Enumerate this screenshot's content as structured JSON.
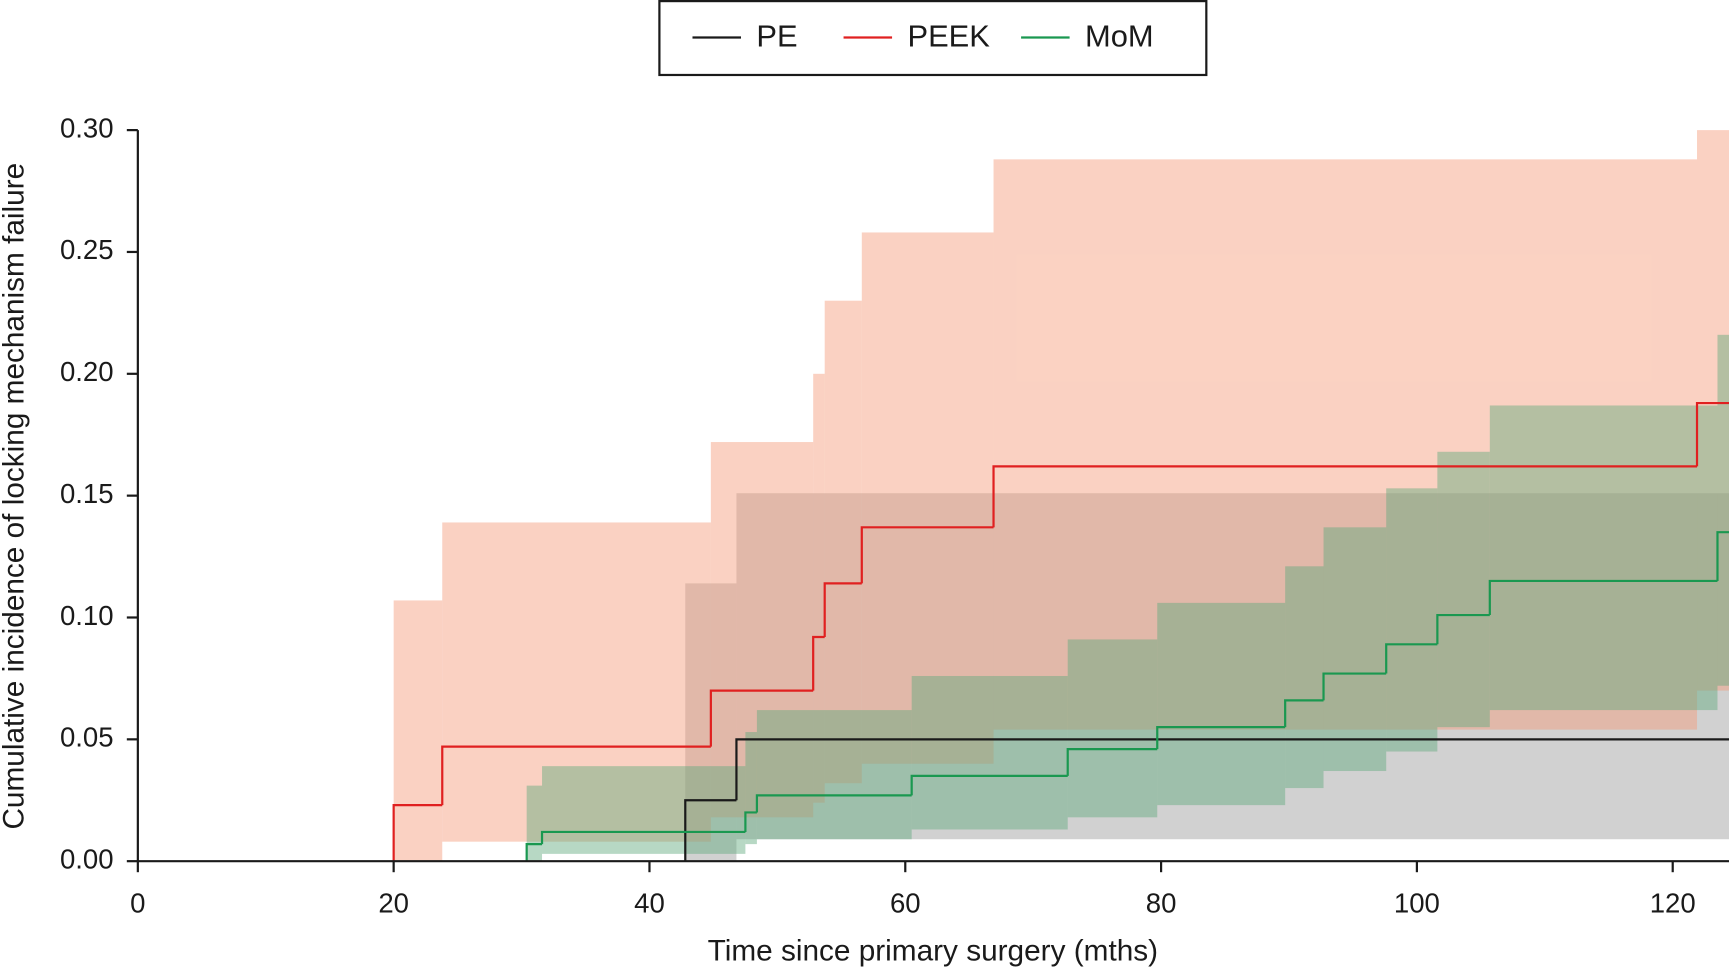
{
  "chart_data": {
    "type": "step",
    "xlabel": "Time since primary surgery (mths)",
    "ylabel": "Cumulative incidence of locking mechanism failure",
    "xlim": [
      0,
      124.4
    ],
    "ylim": [
      0,
      0.3
    ],
    "xticks": [
      0,
      20,
      40,
      60,
      80,
      100,
      120
    ],
    "yticks": [
      {
        "value": 0,
        "label": "0.00"
      },
      {
        "value": 0.05,
        "label": "0.05"
      },
      {
        "value": 0.1,
        "label": "0.10"
      },
      {
        "value": 0.15,
        "label": "0.15"
      },
      {
        "value": 0.2,
        "label": "0.20"
      },
      {
        "value": 0.25,
        "label": "0.25"
      },
      {
        "value": 0.3,
        "label": "0.30"
      }
    ],
    "legend": "top",
    "series": [
      {
        "name": "PE",
        "color": "#1a1a1a",
        "band_color": "#9a9a9a",
        "x": [
          42.8,
          46.8
        ],
        "values": [
          0.025,
          0.05
        ],
        "band": {
          "x": [
            42.8,
            46.8
          ],
          "lower": [
            0,
            0.009
          ],
          "upper": [
            0.114,
            0.151
          ]
        }
      },
      {
        "name": "PEEK",
        "color": "#e02020",
        "band_color": "#f59a78",
        "x": [
          20,
          23.8,
          44.8,
          52.8,
          53.7,
          56.6,
          66.9,
          121.9
        ],
        "values": [
          0.023,
          0.047,
          0.07,
          0.092,
          0.114,
          0.137,
          0.162,
          0.188
        ],
        "band": {
          "x": [
            20,
            23.8,
            44.8,
            52.8,
            53.7,
            56.6,
            66.9,
            121.9
          ],
          "lower": [
            0,
            0.008,
            0.018,
            0.024,
            0.032,
            0.04,
            0.054,
            0.07
          ],
          "upper": [
            0.107,
            0.139,
            0.172,
            0.2,
            0.23,
            0.258,
            0.288,
            0.3
          ]
        }
      },
      {
        "name": "MoM",
        "color": "#1a9850",
        "band_color": "#5fa87c",
        "x": [
          30.4,
          31.6,
          47.5,
          48.4,
          60.5,
          72.7,
          79.7,
          89.7,
          92.7,
          97.6,
          101.6,
          105.7,
          123.5
        ],
        "values": [
          0.007,
          0.012,
          0.02,
          0.027,
          0.035,
          0.046,
          0.055,
          0.066,
          0.077,
          0.089,
          0.101,
          0.115,
          0.135
        ],
        "band": {
          "x": [
            30.4,
            31.6,
            47.5,
            48.4,
            60.5,
            72.7,
            79.7,
            89.7,
            92.7,
            97.6,
            101.6,
            105.7,
            123.5
          ],
          "lower": [
            0,
            0.003,
            0.007,
            0.009,
            0.013,
            0.018,
            0.023,
            0.03,
            0.037,
            0.045,
            0.055,
            0.062,
            0.072
          ],
          "upper": [
            0.031,
            0.039,
            0.053,
            0.062,
            0.076,
            0.091,
            0.106,
            0.121,
            0.137,
            0.153,
            0.168,
            0.187,
            0.216
          ]
        }
      }
    ]
  }
}
